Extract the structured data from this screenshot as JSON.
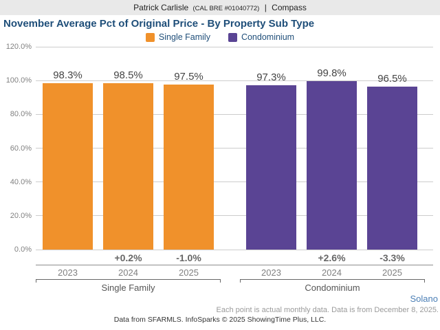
{
  "header": {
    "name": "Patrick Carlisle",
    "license": "(CAL BRE #01040772)",
    "separator": "|",
    "company": "Compass"
  },
  "chart_data": {
    "type": "bar",
    "title": "November Average Pct of Original Price - By Property Sub Type",
    "categories": [
      "2023",
      "2024",
      "2025"
    ],
    "series": [
      {
        "name": "Single Family",
        "color": "#F0912B",
        "values": [
          98.3,
          98.5,
          97.5
        ],
        "value_labels": [
          "98.3%",
          "98.5%",
          "97.5%"
        ],
        "change_labels": [
          "",
          "+0.2%",
          "-1.0%"
        ]
      },
      {
        "name": "Condominium",
        "color": "#5A4494",
        "values": [
          97.3,
          99.8,
          96.5
        ],
        "value_labels": [
          "97.3%",
          "99.8%",
          "96.5%"
        ],
        "change_labels": [
          "",
          "+2.6%",
          "-3.3%"
        ]
      }
    ],
    "ylim": [
      0,
      120
    ],
    "yticks": [
      {
        "value": 120,
        "label": "120.0%"
      },
      {
        "value": 100,
        "label": "100.0%"
      },
      {
        "value": 80,
        "label": "80.0%"
      },
      {
        "value": 60,
        "label": "60.0%"
      },
      {
        "value": 40,
        "label": "40.0%"
      },
      {
        "value": 20,
        "label": "20.0%"
      },
      {
        "value": 0,
        "label": "0.0%"
      }
    ],
    "grid": true,
    "legend_position": "top"
  },
  "region_label": "Solano",
  "footnote": "Each point is actual monthly data. Data is from December 8, 2025.",
  "footer": "Data from SFARMLS. InfoSparks © 2025 ShowingTime Plus, LLC."
}
